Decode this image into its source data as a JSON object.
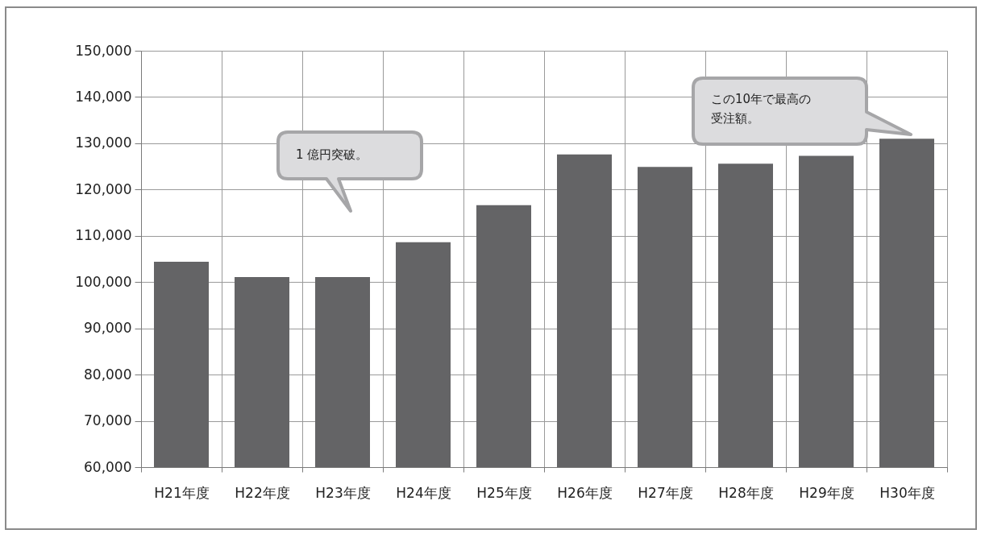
{
  "chart_data": {
    "type": "bar",
    "categories": [
      "H21年度",
      "H22年度",
      "H23年度",
      "H24年度",
      "H25年度",
      "H26年度",
      "H27年度",
      "H28年度",
      "H29年度",
      "H30年度"
    ],
    "values": [
      104400,
      101100,
      101100,
      108600,
      116600,
      127600,
      124900,
      125600,
      127300,
      131000
    ],
    "color": "#646466",
    "ylim": [
      60000,
      150000
    ],
    "yticks": [
      {
        "value": 60000,
        "label": "60,000"
      },
      {
        "value": 70000,
        "label": "70,000"
      },
      {
        "value": 80000,
        "label": "80,000"
      },
      {
        "value": 90000,
        "label": "90,000"
      },
      {
        "value": 100000,
        "label": "100,000"
      },
      {
        "value": 110000,
        "label": "110,000"
      },
      {
        "value": 120000,
        "label": "120,000"
      },
      {
        "value": 130000,
        "label": "130,000"
      },
      {
        "value": 140000,
        "label": "140,000"
      },
      {
        "value": 150000,
        "label": "150,000"
      }
    ],
    "grid": true,
    "annotations": [
      "1 億円突破。",
      "この10年で最高の受注額。"
    ]
  }
}
